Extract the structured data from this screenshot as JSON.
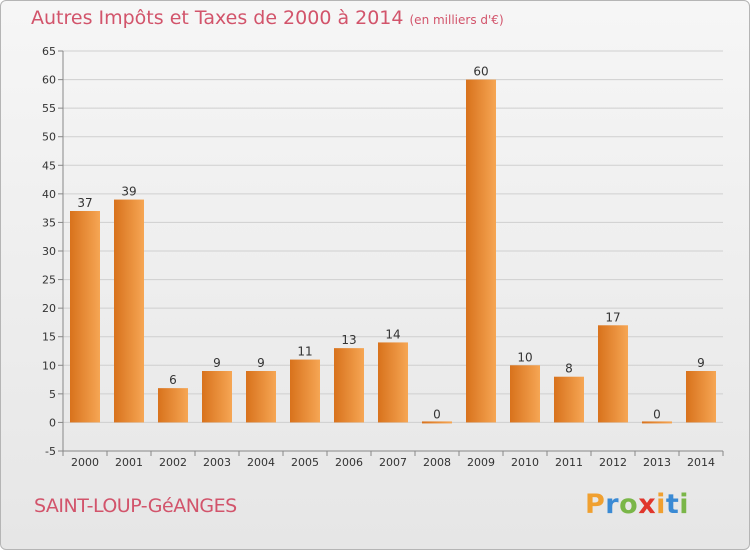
{
  "title": "Autres Impôts et Taxes de 2000 à 2014",
  "unit_label": "(en milliers d'€)",
  "commune": "SAINT-LOUP-GéANGES",
  "logo": {
    "letters": [
      "P",
      "r",
      "o",
      "x",
      "i",
      "t",
      "i"
    ],
    "colors": [
      "#f0a030",
      "#3a8ad4",
      "#7ab648",
      "#e0362c",
      "#f0a030",
      "#3a8ad4",
      "#7ab648"
    ]
  },
  "chart_data": {
    "type": "bar",
    "categories": [
      "2000",
      "2001",
      "2002",
      "2003",
      "2004",
      "2005",
      "2006",
      "2007",
      "2008",
      "2009",
      "2010",
      "2011",
      "2012",
      "2013",
      "2014"
    ],
    "values": [
      37,
      39,
      6,
      9,
      9,
      11,
      13,
      14,
      0,
      60,
      10,
      8,
      17,
      0,
      9
    ],
    "data_labels": [
      "37",
      "39",
      "6",
      "9",
      "9",
      "11",
      "13",
      "14",
      "0",
      "60",
      "10",
      "8",
      "17",
      "0",
      "9"
    ],
    "ylim": [
      -5,
      65
    ],
    "yticks": [
      -5,
      0,
      5,
      10,
      15,
      20,
      25,
      30,
      35,
      40,
      45,
      50,
      55,
      60,
      65
    ],
    "grid": true,
    "colors": {
      "bar_top": "#f6a654",
      "bar_bottom": "#d8721c",
      "grid": "#cfcfcf",
      "axis": "#888888",
      "label": "#333333"
    }
  }
}
